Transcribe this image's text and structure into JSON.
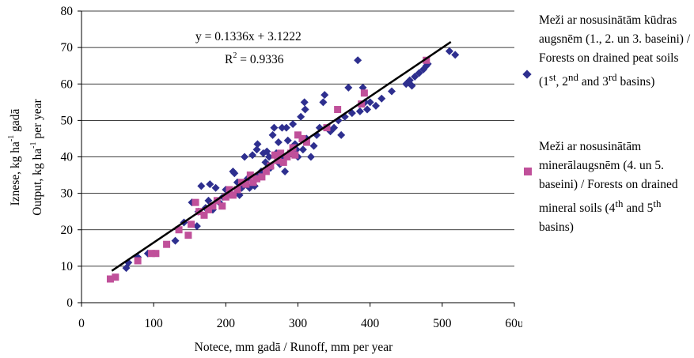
{
  "chart_data": {
    "type": "scatter",
    "xlabel": "Notece, mm gadā / Runoff, mm per year",
    "ylabel_line1": "Iznese, kg ha",
    "ylabel_line1_sup": "-1",
    "ylabel_line1_end": " gadā",
    "ylabel_line2": "Output, kg ha",
    "ylabel_line2_sup": "-1",
    "ylabel_line2_end": " per year",
    "xlim": [
      0,
      600
    ],
    "ylim": [
      0,
      80
    ],
    "x_ticks": [
      "0",
      "100",
      "200",
      "300",
      "400",
      "500",
      "60υ"
    ],
    "y_ticks": [
      "0",
      "10",
      "20",
      "30",
      "40",
      "50",
      "60",
      "70",
      "80"
    ],
    "grid": "horizontal",
    "trendline": {
      "slope": 0.1336,
      "intercept": 3.1222,
      "x_range": [
        42,
        512
      ],
      "equation": "y = 0.1336x + 3.1222",
      "r2_prefix": "R",
      "r2_sup": "2",
      "r2_suffix": " = 0.9336",
      "color": "#000000"
    },
    "series": [
      {
        "name": "Meži ar nosusinātām kūdras augsnēm (1., 2. un 3. baseini) / Forests on drained peat soils",
        "marker": "diamond",
        "color": "#2e2f8f",
        "points": [
          [
            62,
            9.5
          ],
          [
            65,
            11
          ],
          [
            78,
            12.5
          ],
          [
            92,
            13.5
          ],
          [
            130,
            17
          ],
          [
            142,
            22
          ],
          [
            153,
            27.5
          ],
          [
            160,
            21
          ],
          [
            162,
            25
          ],
          [
            166,
            32
          ],
          [
            172,
            26
          ],
          [
            176,
            28
          ],
          [
            178,
            32.5
          ],
          [
            182,
            25.5
          ],
          [
            186,
            31.5
          ],
          [
            191,
            27.5
          ],
          [
            196,
            29
          ],
          [
            200,
            31
          ],
          [
            205,
            30
          ],
          [
            210,
            36
          ],
          [
            212,
            35.5
          ],
          [
            216,
            33
          ],
          [
            219,
            29.5
          ],
          [
            222,
            31.5
          ],
          [
            226,
            40
          ],
          [
            230,
            34
          ],
          [
            233,
            31.5
          ],
          [
            237,
            40.5
          ],
          [
            240,
            32
          ],
          [
            243,
            42
          ],
          [
            244,
            43.5
          ],
          [
            246,
            35
          ],
          [
            249,
            36
          ],
          [
            252,
            41
          ],
          [
            255,
            38.5
          ],
          [
            257,
            41.5
          ],
          [
            260,
            40
          ],
          [
            262,
            37
          ],
          [
            265,
            46
          ],
          [
            267,
            48
          ],
          [
            270,
            41
          ],
          [
            273,
            44
          ],
          [
            275,
            38
          ],
          [
            278,
            48
          ],
          [
            280,
            40
          ],
          [
            282,
            36
          ],
          [
            284,
            48
          ],
          [
            286,
            44.5
          ],
          [
            290,
            41
          ],
          [
            293,
            49
          ],
          [
            296,
            43.5
          ],
          [
            298,
            42
          ],
          [
            300,
            40
          ],
          [
            304,
            51
          ],
          [
            307,
            42
          ],
          [
            309,
            55
          ],
          [
            310,
            53
          ],
          [
            312,
            45
          ],
          [
            318,
            40
          ],
          [
            322,
            43
          ],
          [
            326,
            46
          ],
          [
            330,
            48
          ],
          [
            335,
            55
          ],
          [
            337,
            57
          ],
          [
            345,
            47
          ],
          [
            350,
            48
          ],
          [
            356,
            50
          ],
          [
            360,
            46
          ],
          [
            365,
            51
          ],
          [
            370,
            59
          ],
          [
            375,
            52
          ],
          [
            383,
            66.5
          ],
          [
            386,
            52.5
          ],
          [
            390,
            59
          ],
          [
            393,
            55
          ],
          [
            396,
            53
          ],
          [
            400,
            55
          ],
          [
            408,
            54
          ],
          [
            416,
            56
          ],
          [
            430,
            58
          ],
          [
            450,
            60
          ],
          [
            455,
            61
          ],
          [
            458,
            59.5
          ],
          [
            462,
            62
          ],
          [
            468,
            63
          ],
          [
            474,
            64
          ],
          [
            478,
            65
          ],
          [
            480,
            65.5
          ],
          [
            510,
            69
          ],
          [
            518,
            68
          ]
        ]
      },
      {
        "name": "Meži ar nosusinātām minerālaugsnēm (4. un 5. baseini) / Forests on drained mineral soils",
        "marker": "square",
        "color": "#c0509a",
        "points": [
          [
            40,
            6.5
          ],
          [
            47,
            7
          ],
          [
            78,
            11.5
          ],
          [
            97,
            13.5
          ],
          [
            103,
            13.5
          ],
          [
            118,
            16
          ],
          [
            135,
            20
          ],
          [
            148,
            18.5
          ],
          [
            152,
            21.5
          ],
          [
            158,
            27.5
          ],
          [
            163,
            25
          ],
          [
            170,
            24
          ],
          [
            176,
            25.5
          ],
          [
            182,
            26.5
          ],
          [
            188,
            28
          ],
          [
            195,
            26.5
          ],
          [
            200,
            29
          ],
          [
            205,
            31
          ],
          [
            210,
            29.5
          ],
          [
            216,
            31
          ],
          [
            222,
            33
          ],
          [
            228,
            32.5
          ],
          [
            234,
            35
          ],
          [
            238,
            33
          ],
          [
            243,
            34
          ],
          [
            250,
            34.5
          ],
          [
            256,
            36
          ],
          [
            262,
            37.5
          ],
          [
            268,
            40.5
          ],
          [
            272,
            39
          ],
          [
            276,
            41
          ],
          [
            280,
            38.5
          ],
          [
            285,
            40
          ],
          [
            290,
            41
          ],
          [
            293,
            42.5
          ],
          [
            296,
            40.5
          ],
          [
            300,
            46
          ],
          [
            306,
            45
          ],
          [
            312,
            44
          ],
          [
            340,
            48
          ],
          [
            355,
            53
          ],
          [
            388,
            54.5
          ],
          [
            392,
            57.5
          ],
          [
            478,
            66.5
          ]
        ]
      }
    ]
  },
  "legend": {
    "peat": {
      "text": "Meži ar nosusinātām kūdras augsnēm (1., 2. un 3. baseini) / Forests on drained peat soils (1",
      "sup1": "st",
      "mid1": ", 2",
      "sup2": "nd",
      "mid2": " and 3",
      "sup3": "rd",
      "tail": " basins)"
    },
    "mineral": {
      "text": "Meži ar nosusinātām minerālaugsnēm (4. un 5. baseini) / Forests on drained mineral soils (4",
      "sup1": "th",
      "mid1": " and 5",
      "sup2": "th",
      "tail": " basins)"
    }
  }
}
